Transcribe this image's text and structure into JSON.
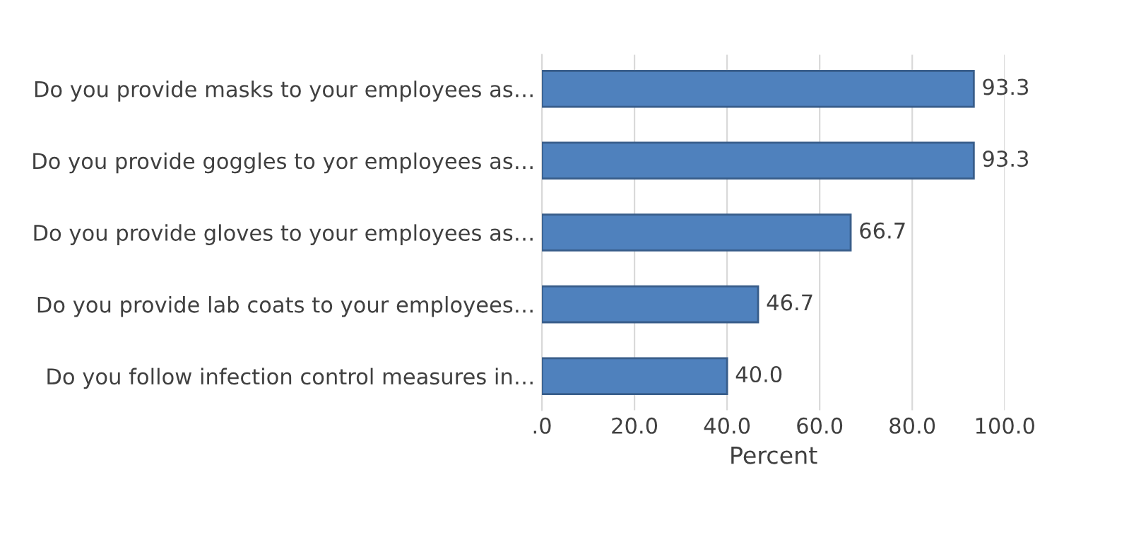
{
  "chart_data": {
    "type": "bar",
    "orientation": "horizontal",
    "xlabel": "Percent",
    "categories": [
      "Do you provide masks to your employees as…",
      "Do you provide goggles to yor employees as…",
      "Do you provide gloves to your employees as…",
      "Do you provide lab coats to your employees…",
      "Do you follow infection control measures in…"
    ],
    "values": [
      93.3,
      93.3,
      66.7,
      46.7,
      40.0
    ],
    "value_labels": [
      "93.3",
      "93.3",
      "66.7",
      "46.7",
      "40.0"
    ],
    "color": "#4f81bd",
    "xlim": [
      0,
      100
    ],
    "xticks": [
      {
        "value": 0,
        "label": ".0"
      },
      {
        "value": 20,
        "label": "20.0"
      },
      {
        "value": 40,
        "label": "40.0"
      },
      {
        "value": 60,
        "label": "60.0"
      },
      {
        "value": 80,
        "label": "80.0"
      },
      {
        "value": 100,
        "label": "100.0"
      }
    ],
    "grid": "x"
  }
}
